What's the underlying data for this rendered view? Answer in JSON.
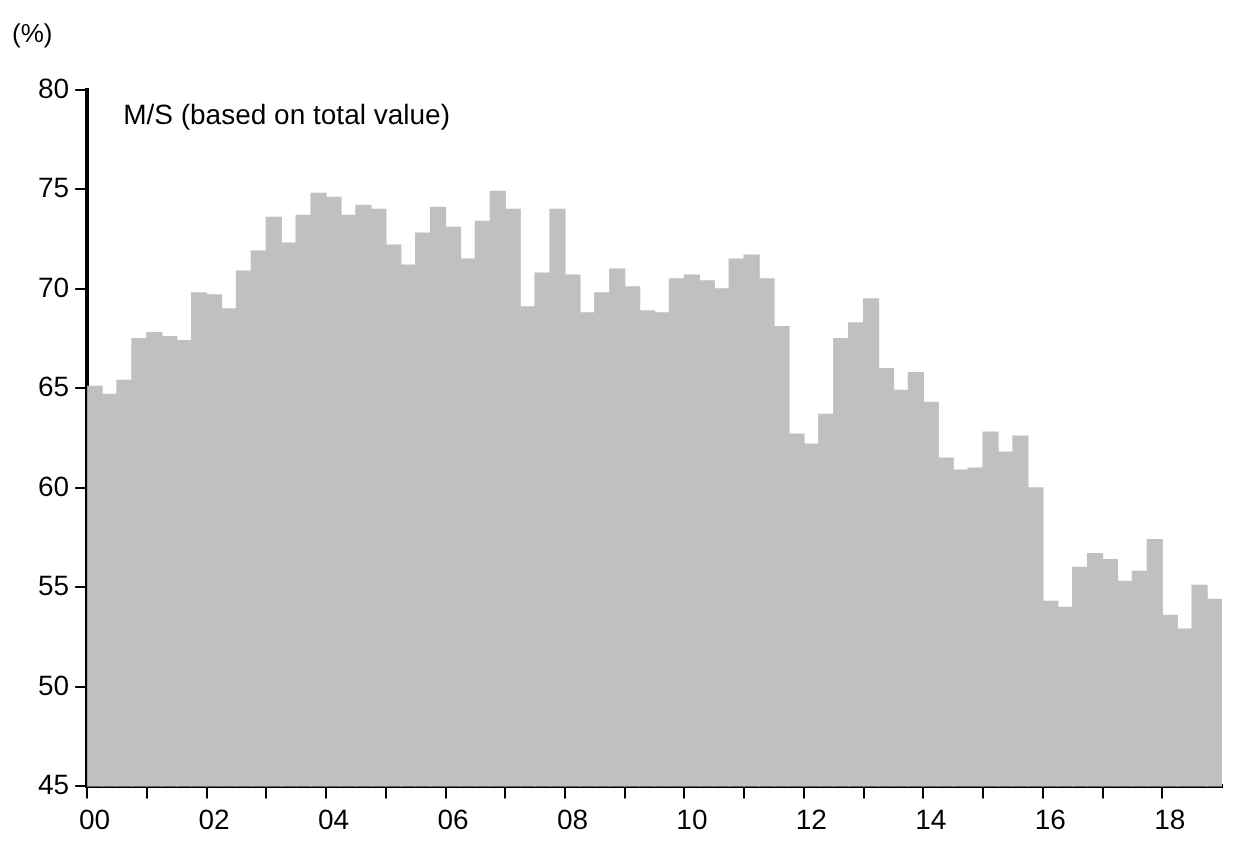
{
  "chart_data": {
    "type": "bar",
    "title": "M/S (based on total value)",
    "ylabel": "(%)",
    "categories": [
      "00",
      null,
      null,
      null,
      null,
      null,
      null,
      null,
      "02",
      null,
      null,
      null,
      null,
      null,
      null,
      null,
      "04",
      null,
      null,
      null,
      null,
      null,
      null,
      null,
      "06",
      null,
      null,
      null,
      null,
      null,
      null,
      null,
      "08",
      null,
      null,
      null,
      null,
      null,
      null,
      null,
      "10",
      null,
      null,
      null,
      null,
      null,
      null,
      null,
      "12",
      null,
      null,
      null,
      null,
      null,
      null,
      null,
      "14",
      null,
      null,
      null,
      null,
      null,
      null,
      null,
      "16",
      null,
      null,
      null,
      null,
      null,
      null,
      null,
      "18",
      null,
      null,
      null
    ],
    "values": [
      65.1,
      64.7,
      65.4,
      67.5,
      67.8,
      67.6,
      67.4,
      69.8,
      69.7,
      69.0,
      70.9,
      71.9,
      73.6,
      72.3,
      73.7,
      74.8,
      74.6,
      73.7,
      74.2,
      74.0,
      72.2,
      71.2,
      72.8,
      74.1,
      73.1,
      71.5,
      73.4,
      74.9,
      74.0,
      69.1,
      70.8,
      74.0,
      70.7,
      68.8,
      69.8,
      71.0,
      70.1,
      68.9,
      68.8,
      70.5,
      70.7,
      70.4,
      70.0,
      71.5,
      71.7,
      70.5,
      68.1,
      62.7,
      62.2,
      63.7,
      67.5,
      68.3,
      69.5,
      66.0,
      64.9,
      65.8,
      64.3,
      61.5,
      60.9,
      61.0,
      62.8,
      61.8,
      62.6,
      60.0,
      54.3,
      54.0,
      56.0,
      56.7,
      56.4,
      55.3,
      55.8,
      57.4,
      53.6,
      52.9,
      55.1,
      54.4
    ],
    "color": "#c0c0c0",
    "ylim": [
      45,
      80
    ],
    "yticks": [
      45,
      50,
      55,
      60,
      65,
      70,
      75,
      80
    ],
    "grid": false,
    "legend": false
  }
}
